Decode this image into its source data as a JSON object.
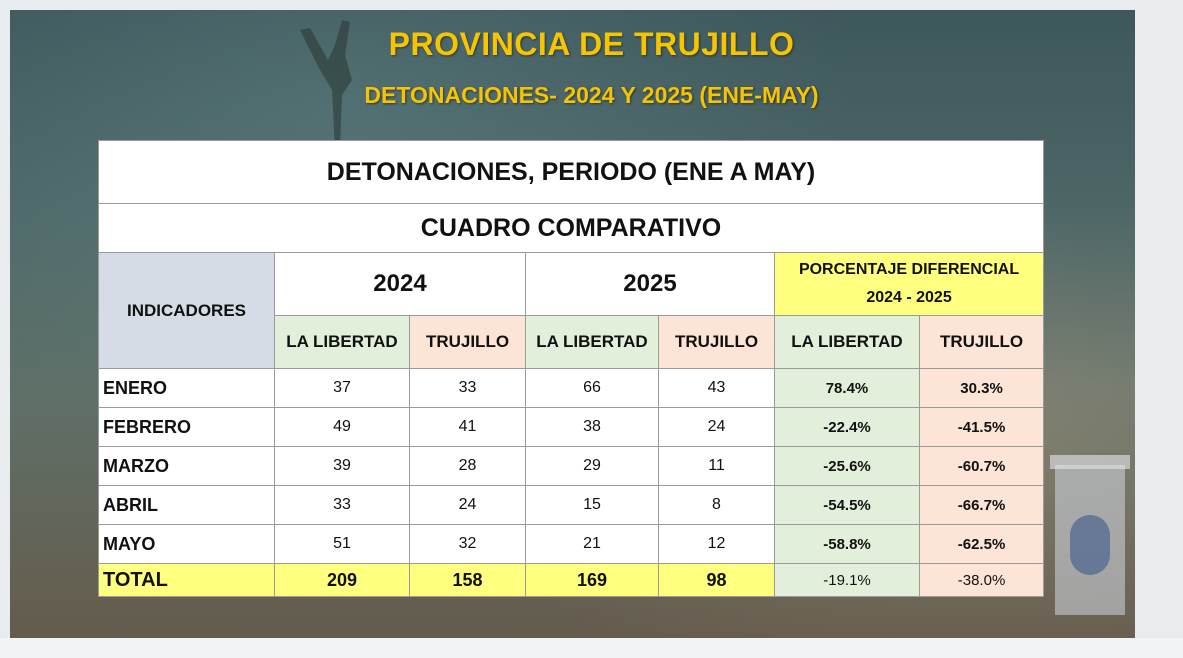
{
  "title": "PROVINCIA DE TRUJILLO",
  "subtitle": "DETONACIONES- 2024 Y 2025 (ENE-MAY)",
  "table": {
    "banner_1": "DETONACIONES,   PERIODO (ENE A MAY)",
    "banner_2": "CUADRO COMPARATIVO",
    "header_indicadores": "INDICADORES",
    "header_2024": "2024",
    "header_2025": "2025",
    "header_pct_line1": "PORCENTAJE DIFERENCIAL",
    "header_pct_line2": "2024 - 2025",
    "sub_headers": [
      "LA LIBERTAD",
      "TRUJILLO",
      "LA LIBERTAD",
      "TRUJILLO",
      "LA LIBERTAD",
      "TRUJILLO"
    ],
    "rows": [
      {
        "label": "ENERO",
        "ll_2024": "37",
        "tr_2024": "33",
        "ll_2025": "66",
        "tr_2025": "43",
        "pct_ll": "78.4%",
        "pct_tr": "30.3%"
      },
      {
        "label": "FEBRERO",
        "ll_2024": "49",
        "tr_2024": "41",
        "ll_2025": "38",
        "tr_2025": "24",
        "pct_ll": "-22.4%",
        "pct_tr": "-41.5%"
      },
      {
        "label": "MARZO",
        "ll_2024": "39",
        "tr_2024": "28",
        "ll_2025": "29",
        "tr_2025": "11",
        "pct_ll": "-25.6%",
        "pct_tr": "-60.7%"
      },
      {
        "label": "ABRIL",
        "ll_2024": "33",
        "tr_2024": "24",
        "ll_2025": "15",
        "tr_2025": "8",
        "pct_ll": "-54.5%",
        "pct_tr": "-66.7%"
      },
      {
        "label": "MAYO",
        "ll_2024": "51",
        "tr_2024": "32",
        "ll_2025": "21",
        "tr_2025": "12",
        "pct_ll": "-58.8%",
        "pct_tr": "-62.5%"
      }
    ],
    "total": {
      "label": "TOTAL",
      "ll_2024": "209",
      "tr_2024": "158",
      "ll_2025": "169",
      "tr_2025": "98",
      "pct_ll": "-19.1%",
      "pct_tr": "-38.0%"
    }
  },
  "colors": {
    "title_yellow": "#f6c400",
    "header_blue": "#d6dce5",
    "highlight_yellow": "#ffff7f",
    "green": "#e2efda",
    "peach": "#fce4d6"
  }
}
